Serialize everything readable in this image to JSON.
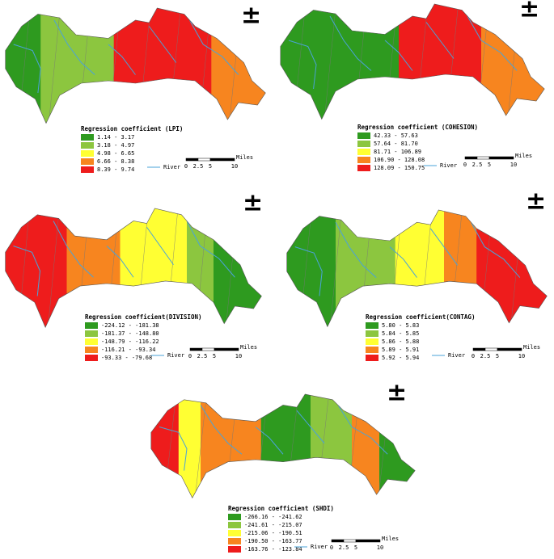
{
  "north_symbol": "±",
  "river_label": "River",
  "scale_unit": "Miles",
  "scale_labels": [
    "0",
    "2.5",
    "5",
    "10"
  ],
  "panels": [
    {
      "legend_title": "Regression coefficient (LPI)",
      "classes": [
        {
          "label": "1.14 - 3.17",
          "color": "#2e9a1f"
        },
        {
          "label": "3.18 - 4.97",
          "color": "#8cc63f"
        },
        {
          "label": "4.98 - 6.65",
          "color": "#ffff33"
        },
        {
          "label": "6.66 - 8.38",
          "color": "#f7851f"
        },
        {
          "label": "8.39 - 9.74",
          "color": "#ee1c1c"
        }
      ]
    },
    {
      "legend_title": "Regression coefficient (COHESION)",
      "classes": [
        {
          "label": "42.33 - 57.63",
          "color": "#2e9a1f"
        },
        {
          "label": "57.64 - 81.70",
          "color": "#8cc63f"
        },
        {
          "label": "81.71 - 106.89",
          "color": "#ffff33"
        },
        {
          "label": "106.90 - 128.08",
          "color": "#f7851f"
        },
        {
          "label": "128.09 - 150.75",
          "color": "#ee1c1c"
        }
      ]
    },
    {
      "legend_title": "Regression coefficient(DIVISION)",
      "classes": [
        {
          "label": "-224.12 - -181.38",
          "color": "#2e9a1f"
        },
        {
          "label": "-181.37 - -148.80",
          "color": "#8cc63f"
        },
        {
          "label": "-148.79 - -116.22",
          "color": "#ffff33"
        },
        {
          "label": "-116.21 - -93.34",
          "color": "#f7851f"
        },
        {
          "label": "-93.33 - -79.68",
          "color": "#ee1c1c"
        }
      ]
    },
    {
      "legend_title": "Regression coefficient(CONTAG)",
      "classes": [
        {
          "label": "5.80 - 5.83",
          "color": "#2e9a1f"
        },
        {
          "label": "5.84 - 5.85",
          "color": "#8cc63f"
        },
        {
          "label": "5.86 - 5.88",
          "color": "#ffff33"
        },
        {
          "label": "5.89 - 5.91",
          "color": "#f7851f"
        },
        {
          "label": "5.92 - 5.94",
          "color": "#ee1c1c"
        }
      ]
    },
    {
      "legend_title": "Regression coefficient (SHDI)",
      "classes": [
        {
          "label": "-266.16 - -241.62",
          "color": "#2e9a1f"
        },
        {
          "label": "-241.61 - -215.07",
          "color": "#8cc63f"
        },
        {
          "label": "-215.06 - -190.51",
          "color": "#ffff33"
        },
        {
          "label": "-190.50 - -163.77",
          "color": "#f7851f"
        },
        {
          "label": "-163.76 - -123.84",
          "color": "#ee1c1c"
        }
      ]
    }
  ]
}
